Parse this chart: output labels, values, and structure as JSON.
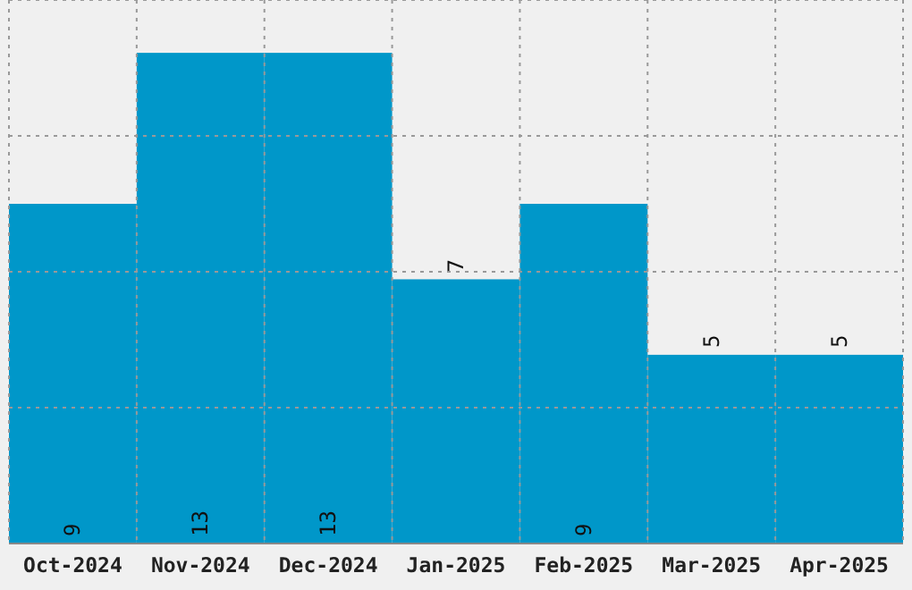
{
  "chart_data": {
    "type": "bar",
    "categories": [
      "Oct-2024",
      "Nov-2024",
      "Dec-2024",
      "Jan-2025",
      "Feb-2025",
      "Mar-2025",
      "Apr-2025"
    ],
    "values": [
      9,
      13,
      13,
      7,
      9,
      5,
      5
    ],
    "color": "#0097c9",
    "ylim": [
      0,
      14.4
    ],
    "yticks": [
      {
        "value": 3.6,
        "label": null
      },
      {
        "value": 7.2,
        "label": null
      },
      {
        "value": 10.8,
        "label": null
      },
      {
        "value": 14.4,
        "label": null
      }
    ],
    "tick_labels": "x",
    "grid": true,
    "data_labels": true
  }
}
